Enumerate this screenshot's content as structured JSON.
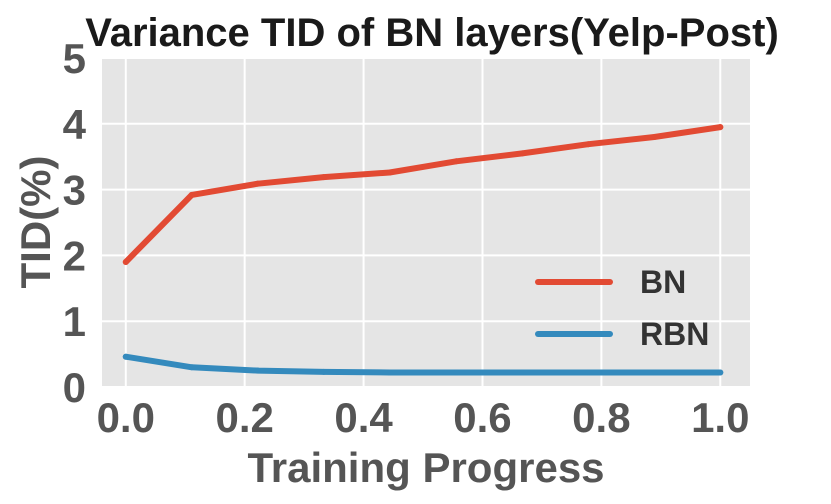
{
  "chart_data": {
    "type": "line",
    "title": "Variance TID of BN layers(Yelp-Post)",
    "xlabel": "Training Progress",
    "ylabel": "TID(%)",
    "xlim": [
      -0.04,
      1.05
    ],
    "ylim": [
      0,
      5
    ],
    "xticks": [
      "0.0",
      "0.2",
      "0.4",
      "0.6",
      "0.8",
      "1.0"
    ],
    "yticks": [
      "0",
      "1",
      "2",
      "3",
      "4",
      "5"
    ],
    "grid": true,
    "legend_position": "lower-right",
    "background_color": "#e5e5e5",
    "series": [
      {
        "name": "BN",
        "color": "#e24a33",
        "x": [
          0.0,
          0.111,
          0.222,
          0.333,
          0.444,
          0.556,
          0.667,
          0.778,
          0.889,
          1.0
        ],
        "y": [
          1.9,
          2.92,
          3.09,
          3.19,
          3.26,
          3.43,
          3.55,
          3.69,
          3.8,
          3.95
        ]
      },
      {
        "name": "RBN",
        "color": "#348abd",
        "x": [
          0.0,
          0.111,
          0.222,
          0.333,
          0.444,
          0.556,
          0.667,
          0.778,
          0.889,
          1.0
        ],
        "y": [
          0.46,
          0.3,
          0.25,
          0.23,
          0.22,
          0.22,
          0.22,
          0.22,
          0.22,
          0.22
        ]
      }
    ]
  }
}
